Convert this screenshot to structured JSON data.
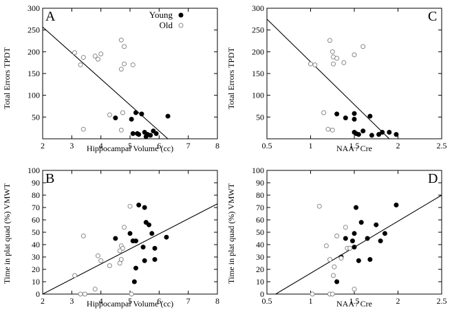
{
  "chart_data": [
    {
      "panel": "A",
      "type": "scatter",
      "xlabel": "Hippocampal Volume (cc)",
      "ylabel": "Total Errors TPDT",
      "xlim": [
        2,
        8
      ],
      "ylim": [
        0,
        300
      ],
      "xticks": [
        2,
        3,
        4,
        5,
        6,
        7,
        8
      ],
      "yticks": [
        50,
        100,
        150,
        200,
        250,
        300
      ],
      "legend": {
        "position": "top-right",
        "entries": [
          {
            "name": "Young",
            "marker": "filled"
          },
          {
            "name": "Old",
            "marker": "open"
          }
        ]
      },
      "regression_line": [
        [
          2,
          257
        ],
        [
          6.3,
          0
        ]
      ],
      "series": [
        {
          "name": "Young",
          "marker": "filled",
          "points": [
            [
              4.5,
              48
            ],
            [
              5.1,
              12
            ],
            [
              5.2,
              60
            ],
            [
              5.25,
              12
            ],
            [
              5.3,
              10
            ],
            [
              5.4,
              57
            ],
            [
              5.5,
              15
            ],
            [
              5.55,
              5
            ],
            [
              5.6,
              10
            ],
            [
              5.7,
              8
            ],
            [
              5.8,
              18
            ],
            [
              5.9,
              12
            ],
            [
              6.3,
              52
            ],
            [
              5.05,
              45
            ]
          ]
        },
        {
          "name": "Old",
          "marker": "open",
          "points": [
            [
              3.1,
              198
            ],
            [
              3.3,
              170
            ],
            [
              3.4,
              187
            ],
            [
              3.4,
              22
            ],
            [
              3.8,
              190
            ],
            [
              3.9,
              183
            ],
            [
              4.0,
              195
            ],
            [
              4.3,
              55
            ],
            [
              4.7,
              227
            ],
            [
              4.7,
              160
            ],
            [
              4.75,
              60
            ],
            [
              4.8,
              212
            ],
            [
              4.8,
              172
            ],
            [
              5.1,
              170
            ],
            [
              4.7,
              20
            ]
          ]
        }
      ]
    },
    {
      "panel": "C",
      "type": "scatter",
      "xlabel": "NAA / Cre",
      "ylabel": "Total Errors TPDT",
      "xlim": [
        0.5,
        2.5
      ],
      "ylim": [
        0,
        300
      ],
      "xticks": [
        0.5,
        1.0,
        1.5,
        2.0,
        2.5
      ],
      "yticks": [
        50,
        100,
        150,
        200,
        250,
        300
      ],
      "regression_line": [
        [
          0.5,
          275
        ],
        [
          1.9,
          0
        ]
      ],
      "series": [
        {
          "name": "Young",
          "marker": "filled",
          "points": [
            [
              1.3,
              57
            ],
            [
              1.4,
              48
            ],
            [
              1.5,
              58
            ],
            [
              1.5,
              45
            ],
            [
              1.5,
              15
            ],
            [
              1.55,
              10
            ],
            [
              1.6,
              18
            ],
            [
              1.68,
              52
            ],
            [
              1.7,
              8
            ],
            [
              1.78,
              10
            ],
            [
              1.82,
              15
            ],
            [
              1.9,
              15
            ],
            [
              1.98,
              10
            ],
            [
              1.52,
              12
            ]
          ]
        },
        {
          "name": "Old",
          "marker": "open",
          "points": [
            [
              1.0,
              172
            ],
            [
              1.05,
              170
            ],
            [
              1.15,
              60
            ],
            [
              1.2,
              22
            ],
            [
              1.22,
              226
            ],
            [
              1.25,
              200
            ],
            [
              1.26,
              188
            ],
            [
              1.26,
              172
            ],
            [
              1.3,
              185
            ],
            [
              1.38,
              175
            ],
            [
              1.5,
              193
            ],
            [
              1.6,
              212
            ],
            [
              1.25,
              20
            ]
          ]
        }
      ]
    },
    {
      "panel": "B",
      "type": "scatter",
      "xlabel": "Hippocampal Volume (cc)",
      "ylabel": "Time in plat quad (%) VMWT",
      "xlim": [
        2,
        8
      ],
      "ylim": [
        0,
        100
      ],
      "xticks": [
        2,
        3,
        4,
        5,
        6,
        7,
        8
      ],
      "yticks": [
        0,
        10,
        20,
        30,
        40,
        50,
        60,
        70,
        80,
        90,
        100
      ],
      "regression_line": [
        [
          2,
          0
        ],
        [
          8,
          73
        ]
      ],
      "series": [
        {
          "name": "Young",
          "marker": "filled",
          "points": [
            [
              4.5,
              45
            ],
            [
              5.0,
              49
            ],
            [
              5.1,
              43
            ],
            [
              5.15,
              10
            ],
            [
              5.2,
              21
            ],
            [
              5.2,
              43
            ],
            [
              5.3,
              72
            ],
            [
              5.45,
              38
            ],
            [
              5.5,
              70
            ],
            [
              5.55,
              58
            ],
            [
              5.65,
              56
            ],
            [
              5.75,
              49
            ],
            [
              5.85,
              37
            ],
            [
              5.5,
              27
            ],
            [
              5.85,
              28
            ],
            [
              6.25,
              46
            ]
          ]
        },
        {
          "name": "Old",
          "marker": "open",
          "points": [
            [
              3.1,
              15
            ],
            [
              3.3,
              0
            ],
            [
              3.4,
              47
            ],
            [
              3.45,
              0
            ],
            [
              3.8,
              4
            ],
            [
              3.9,
              31
            ],
            [
              4.0,
              27
            ],
            [
              4.3,
              23
            ],
            [
              4.65,
              25
            ],
            [
              4.7,
              28
            ],
            [
              4.7,
              39
            ],
            [
              4.75,
              37
            ],
            [
              4.8,
              54
            ],
            [
              5.0,
              71
            ],
            [
              5.05,
              0
            ],
            [
              4.65,
              35
            ]
          ]
        }
      ]
    },
    {
      "panel": "D",
      "type": "scatter",
      "xlabel": "NAA / Cre",
      "ylabel": "Time in plat quad (%) VMWT",
      "xlim": [
        0.5,
        2.5
      ],
      "ylim": [
        0,
        100
      ],
      "xticks": [
        0.5,
        1.0,
        1.5,
        2.0,
        2.5
      ],
      "yticks": [
        0,
        10,
        20,
        30,
        40,
        50,
        60,
        70,
        80,
        90,
        100
      ],
      "regression_line": [
        [
          0.6,
          0
        ],
        [
          2.5,
          80
        ]
      ],
      "series": [
        {
          "name": "Young",
          "marker": "filled",
          "points": [
            [
              1.3,
              10
            ],
            [
              1.35,
              30
            ],
            [
              1.4,
              45
            ],
            [
              1.48,
              43
            ],
            [
              1.5,
              49
            ],
            [
              1.5,
              38
            ],
            [
              1.52,
              70
            ],
            [
              1.55,
              27
            ],
            [
              1.58,
              58
            ],
            [
              1.65,
              45
            ],
            [
              1.68,
              28
            ],
            [
              1.75,
              56
            ],
            [
              1.8,
              43
            ],
            [
              1.85,
              49
            ],
            [
              1.98,
              72
            ]
          ]
        },
        {
          "name": "Old",
          "marker": "open",
          "points": [
            [
              1.02,
              0
            ],
            [
              1.1,
              71
            ],
            [
              1.18,
              39
            ],
            [
              1.22,
              28
            ],
            [
              1.22,
              0
            ],
            [
              1.25,
              0
            ],
            [
              1.27,
              22
            ],
            [
              1.3,
              47
            ],
            [
              1.35,
              29
            ],
            [
              1.4,
              54
            ],
            [
              1.42,
              37
            ],
            [
              1.45,
              37
            ],
            [
              1.5,
              4
            ],
            [
              1.26,
              15
            ]
          ]
        }
      ]
    }
  ]
}
